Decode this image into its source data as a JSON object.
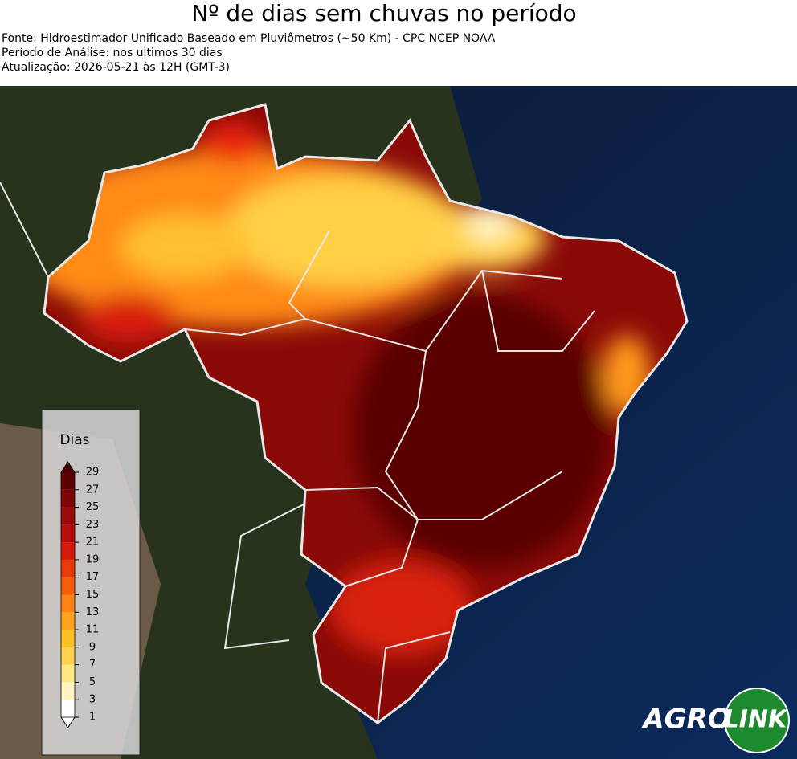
{
  "header": {
    "title": "Nº de dias sem chuvas no período",
    "lines": [
      "Fonte: Hidroestimador Unificado Baseado em Pluviômetros (~50 Km) - CPC NCEP NOAA",
      "Período de Análise: nos ultimos 30 dias",
      "Atualização: 2026-05-21 às 12H (GMT-3)"
    ]
  },
  "legend": {
    "title": "Dias",
    "ticks": [
      29,
      27,
      25,
      23,
      21,
      19,
      17,
      15,
      13,
      11,
      9,
      7,
      5,
      3,
      1
    ],
    "colors": [
      "#5e0000",
      "#7d0505",
      "#9a0a0a",
      "#b80d0d",
      "#d81a0a",
      "#ea3a0a",
      "#f5600f",
      "#ff8416",
      "#ffa31a",
      "#ffbf26",
      "#ffd24d",
      "#ffe680",
      "#fff3bf",
      "#ffffff"
    ],
    "over_color": "#4a0000",
    "under_color": "#ffffff"
  },
  "logo": {
    "left": "AGRO",
    "right": "LINK"
  }
}
